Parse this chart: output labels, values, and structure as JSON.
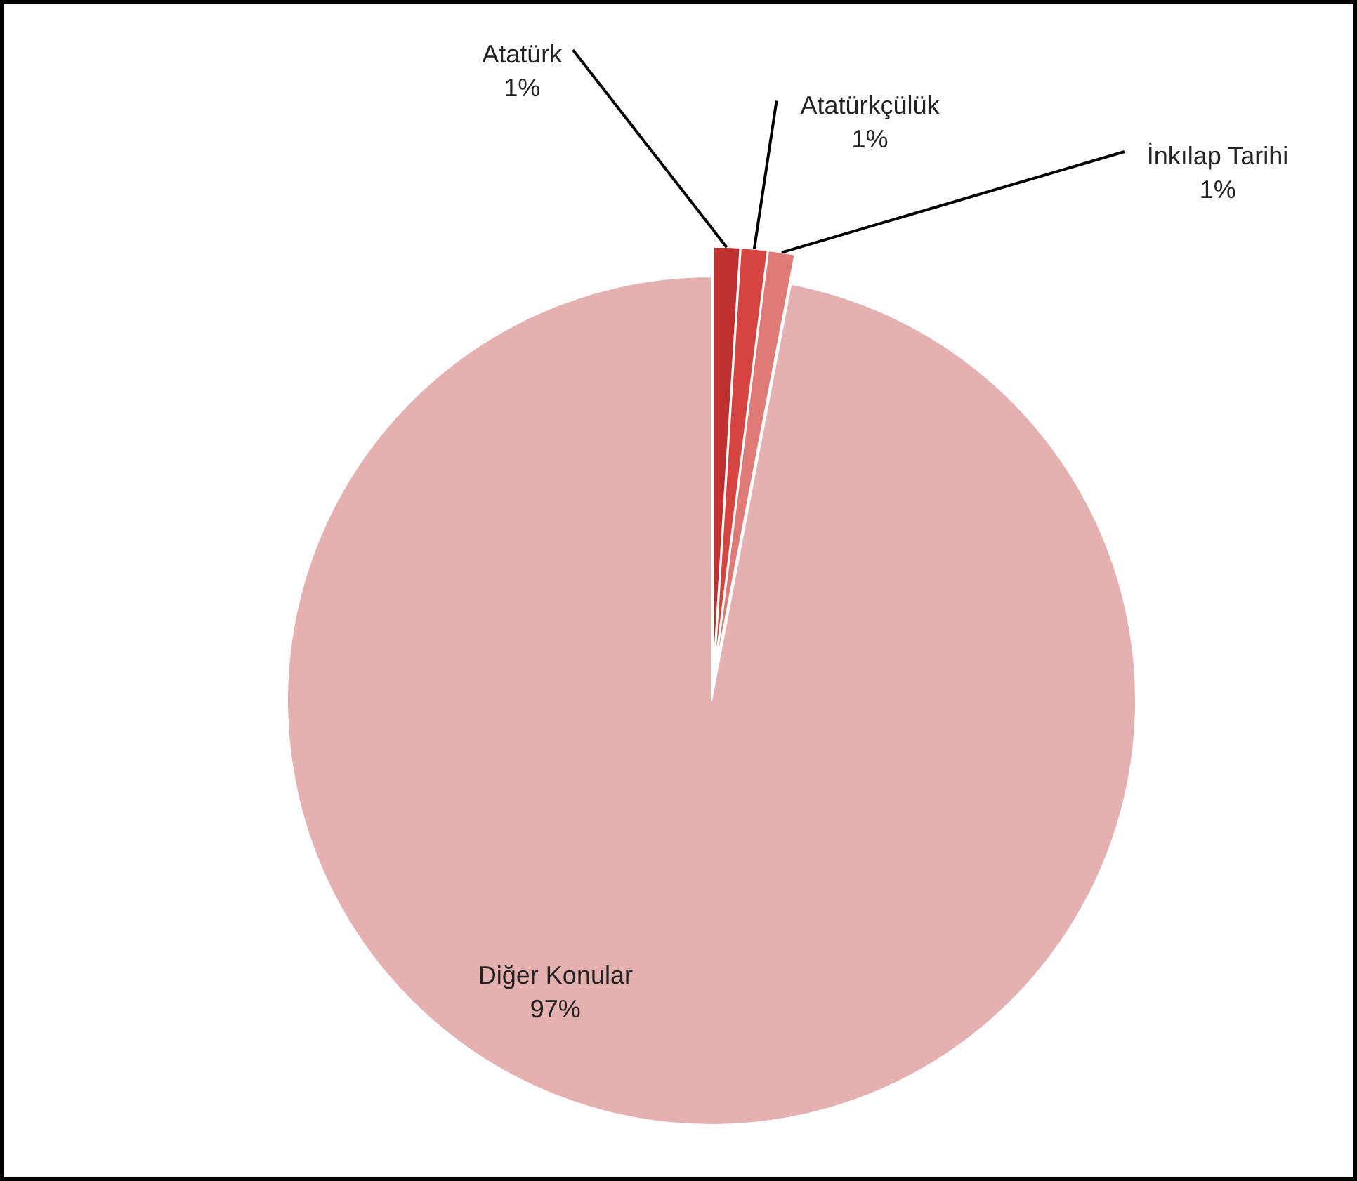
{
  "chart_data": {
    "type": "pie",
    "categories": [
      "Atatürk",
      "Atatürkçülük",
      "İnkılap Tarihi",
      "Diğer Konular"
    ],
    "values": [
      1,
      1,
      1,
      97
    ],
    "colors": [
      "#c0302e",
      "#d6443f",
      "#e07a76",
      "#e4b0b0"
    ],
    "value_labels": [
      "1%",
      "1%",
      "1%",
      "97%"
    ]
  }
}
